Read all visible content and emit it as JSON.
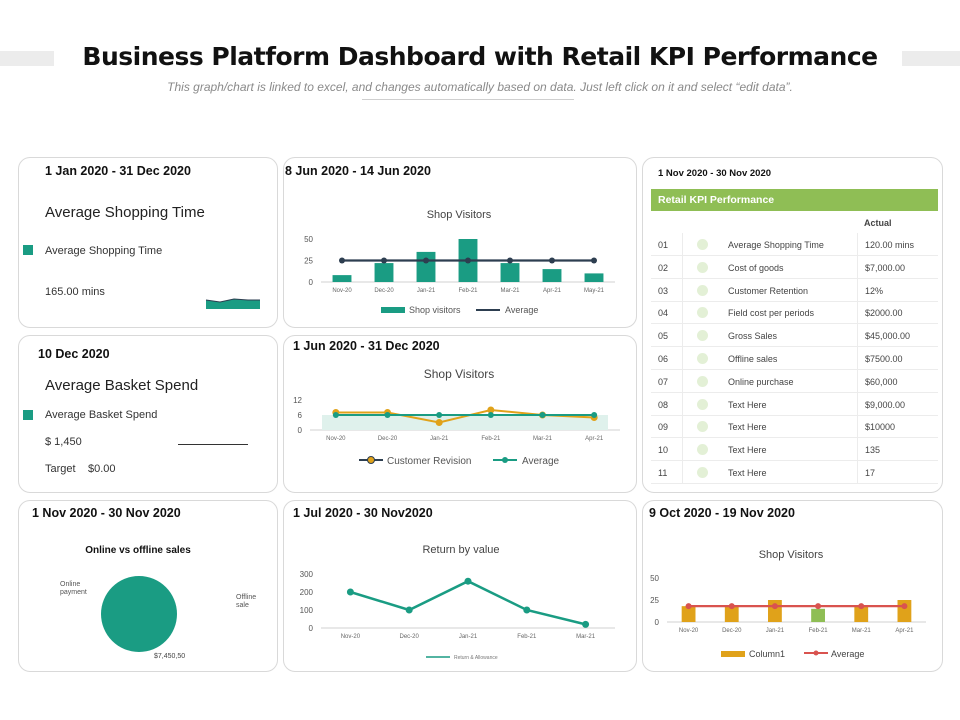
{
  "header": {
    "title": "Business Platform Dashboard with Retail KPI Performance",
    "subtitle": "This graph/chart is linked to excel, and changes automatically based on data. Just left click on it and select “edit data”."
  },
  "colors": {
    "teal": "#1a9c83",
    "navy": "#2d3e50",
    "orange": "#e0a21a",
    "red": "#d9534f",
    "green": "#8fbe55",
    "light_green": "#e3f0d6"
  },
  "card_shopping_time": {
    "date": "1 Jan 2020 - 31 Dec 2020",
    "heading": "Average Shopping Time",
    "legend": "Average Shopping Time",
    "value": "165.00 mins"
  },
  "card_basket": {
    "date": "10 Dec 2020",
    "heading": "Average Basket Spend",
    "legend": "Average Basket Spend",
    "value": "$ 1,450",
    "target_label": "Target",
    "target_value": "$0.00"
  },
  "card_pie": {
    "date": "1 Nov 2020 - 30 Nov 2020",
    "title": "Online vs offline sales",
    "label_online": "Online payment",
    "label_offline": "Offline sale",
    "value_label": "$7,450,50"
  },
  "kpi_table": {
    "date": "1 Nov 2020 - 30 Nov 2020",
    "title": "Retail KPI Performance",
    "col_actual": "Actual",
    "rows": [
      {
        "num": "01",
        "metric": "Average Shopping Time",
        "actual": "120.00 mins"
      },
      {
        "num": "02",
        "metric": "Cost of goods",
        "actual": "$7,000.00"
      },
      {
        "num": "03",
        "metric": "Customer Retention",
        "actual": "12%"
      },
      {
        "num": "04",
        "metric": "Field cost per periods",
        "actual": "$2000.00"
      },
      {
        "num": "05",
        "metric": "Gross Sales",
        "actual": "$45,000.00"
      },
      {
        "num": "06",
        "metric": "Offline sales",
        "actual": "$7500.00"
      },
      {
        "num": "07",
        "metric": "Online purchase",
        "actual": "$60,000"
      },
      {
        "num": "08",
        "metric": "Text Here",
        "actual": "$9,000.00"
      },
      {
        "num": "09",
        "metric": "Text Here",
        "actual": "$10000"
      },
      {
        "num": "10",
        "metric": "Text Here",
        "actual": "135"
      },
      {
        "num": "11",
        "metric": "Text Here",
        "actual": "17"
      }
    ]
  },
  "chart_data": [
    {
      "id": "shop_visitors_1",
      "type": "bar",
      "date": "8 Jun 2020 - 14 Jun 2020",
      "title": "Shop Visitors",
      "categories": [
        "Nov-20",
        "Dec-20",
        "Jan-21",
        "Feb-21",
        "Mar-21",
        "Apr-21",
        "May-21"
      ],
      "series": [
        {
          "name": "Shop visitors",
          "kind": "bar",
          "values": [
            8,
            22,
            35,
            50,
            22,
            15,
            10
          ]
        },
        {
          "name": "Average",
          "kind": "line",
          "values": [
            25,
            25,
            25,
            25,
            25,
            25,
            25
          ]
        }
      ],
      "ylim": [
        0,
        50
      ],
      "yticks": [
        0,
        25,
        50
      ]
    },
    {
      "id": "shop_visitors_2",
      "type": "area",
      "date": "1 Jun 2020 - 31 Dec 2020",
      "title": "Shop  Visitors",
      "categories": [
        "Nov-20",
        "Dec-20",
        "Jan-21",
        "Feb-21",
        "Mar-21",
        "Apr-21"
      ],
      "series": [
        {
          "name": "Customer Revision",
          "values": [
            7,
            7,
            3,
            8,
            6,
            5
          ]
        },
        {
          "name": "Average",
          "values": [
            6,
            6,
            6,
            6,
            6,
            6
          ]
        }
      ],
      "ylim": [
        0,
        12
      ],
      "yticks": [
        0,
        6,
        12
      ]
    },
    {
      "id": "return_by_value",
      "type": "line",
      "date": "1 Jul 2020 - 30 Nov2020",
      "title": "Return by value",
      "categories": [
        "Nov-20",
        "Dec-20",
        "Jan-21",
        "Feb-21",
        "Mar-21"
      ],
      "series": [
        {
          "name": "Return & Allowance",
          "values": [
            200,
            100,
            260,
            100,
            20
          ]
        }
      ],
      "ylim": [
        0,
        300
      ],
      "yticks": [
        0,
        100,
        200,
        300
      ]
    },
    {
      "id": "shop_visitors_3",
      "type": "bar",
      "date": "9 Oct 2020 - 19 Nov 2020",
      "title": "Shop Visitors",
      "categories": [
        "Nov-20",
        "Dec-20",
        "Jan-21",
        "Feb-21",
        "Mar-21",
        "Apr-21"
      ],
      "series": [
        {
          "name": "Column1",
          "kind": "bar",
          "values": [
            18,
            18,
            25,
            15,
            18,
            25
          ]
        },
        {
          "name": "Average",
          "kind": "line",
          "values": [
            18,
            18,
            18,
            18,
            18,
            18
          ]
        }
      ],
      "ylim": [
        0,
        50
      ],
      "yticks": [
        0,
        25,
        50
      ]
    }
  ]
}
